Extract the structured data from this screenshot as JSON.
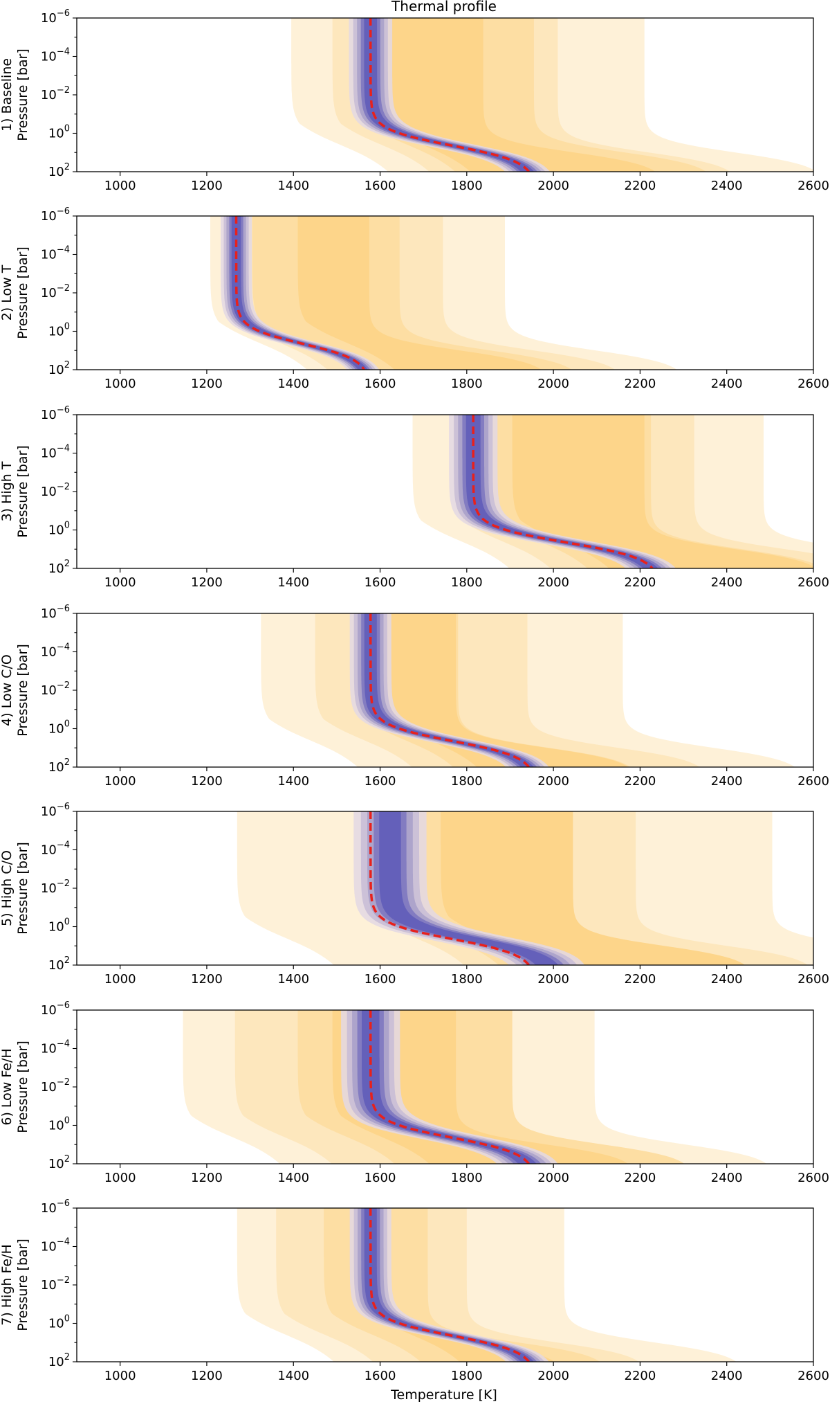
{
  "chart_data": {
    "type": "area",
    "title": "Thermal profile",
    "xlabel": "Temperature [K]",
    "ylabel_suffix": "Pressure [bar]",
    "x_ticks": [
      1000,
      1200,
      1400,
      1600,
      1800,
      2000,
      2200,
      2400,
      2600
    ],
    "xlim": [
      900,
      2600
    ],
    "y_scale": "log",
    "ylim_log10": [
      -6,
      2
    ],
    "y_ticks": [
      {
        "base": "10",
        "exp": "−6",
        "log": -6
      },
      {
        "base": "10",
        "exp": "−4",
        "log": -4
      },
      {
        "base": "10",
        "exp": "−2",
        "log": -2
      },
      {
        "base": "10",
        "exp": "0",
        "log": 0
      },
      {
        "base": "10",
        "exp": "2",
        "log": 2
      }
    ],
    "colors": {
      "prior_bands": [
        "#fef1d8",
        "#fde7bd",
        "#fddea3",
        "#fdd58a"
      ],
      "posterior_bands": [
        "#e3d8e4",
        "#c7bcd6",
        "#a79fc9",
        "#7b76c0",
        "#5f5cb9"
      ],
      "truth_line": "#e8211c"
    },
    "panels": [
      {
        "label": "1) Baseline",
        "truth_profile": {
          "t_upper": 1578,
          "t_lower": 1958
        },
        "prior_bands": [
          {
            "left": 1395,
            "right": 2210
          },
          {
            "left": 1490,
            "right": 2010
          },
          {
            "left": 1550,
            "right": 1955
          },
          {
            "left": 1585,
            "right": 1838
          }
        ],
        "posterior_spread": 25
      },
      {
        "label": "2) Low T",
        "truth_profile": {
          "t_upper": 1268,
          "t_lower": 1575
        },
        "prior_bands": [
          {
            "left": 1208,
            "right": 1888
          },
          {
            "left": 1255,
            "right": 1745
          },
          {
            "left": 1305,
            "right": 1645
          },
          {
            "left": 1410,
            "right": 1575
          }
        ],
        "posterior_spread": 18
      },
      {
        "label": "3) High T",
        "truth_profile": {
          "t_upper": 1815,
          "t_lower": 2245
        },
        "prior_bands": [
          {
            "left": 1675,
            "right": 2485
          },
          {
            "left": 1770,
            "right": 2325
          },
          {
            "left": 1855,
            "right": 2225
          },
          {
            "left": 1905,
            "right": 2210
          }
        ],
        "posterior_spread": 28
      },
      {
        "label": "4) Low C/O",
        "truth_profile": {
          "t_upper": 1578,
          "t_lower": 1958
        },
        "prior_bands": [
          {
            "left": 1325,
            "right": 2160
          },
          {
            "left": 1450,
            "right": 1940
          },
          {
            "left": 1545,
            "right": 1780
          },
          {
            "left": 1600,
            "right": 1775
          }
        ],
        "posterior_spread": 24
      },
      {
        "label": "5) High C/O",
        "truth_profile": {
          "t_upper": 1578,
          "t_lower": 1958
        },
        "prior_bands": [
          {
            "left": 1270,
            "right": 2505
          },
          {
            "left": 1570,
            "right": 2190
          },
          {
            "left": 1650,
            "right": 2045
          },
          {
            "left": 1740,
            "right": 2045
          }
        ],
        "posterior_spread": 42,
        "posterior_offset": 45
      },
      {
        "label": "6) Low Fe/H",
        "truth_profile": {
          "t_upper": 1578,
          "t_lower": 1958
        },
        "prior_bands": [
          {
            "left": 1145,
            "right": 2095
          },
          {
            "left": 1265,
            "right": 1905
          },
          {
            "left": 1410,
            "right": 1905
          },
          {
            "left": 1490,
            "right": 1775
          }
        ],
        "posterior_spread": 34
      },
      {
        "label": "7) High Fe/H",
        "truth_profile": {
          "t_upper": 1578,
          "t_lower": 1958
        },
        "prior_bands": [
          {
            "left": 1270,
            "right": 2025
          },
          {
            "left": 1360,
            "right": 1800
          },
          {
            "left": 1470,
            "right": 1710
          },
          {
            "left": 1560,
            "right": 1605
          }
        ],
        "posterior_spread": 24
      }
    ]
  }
}
